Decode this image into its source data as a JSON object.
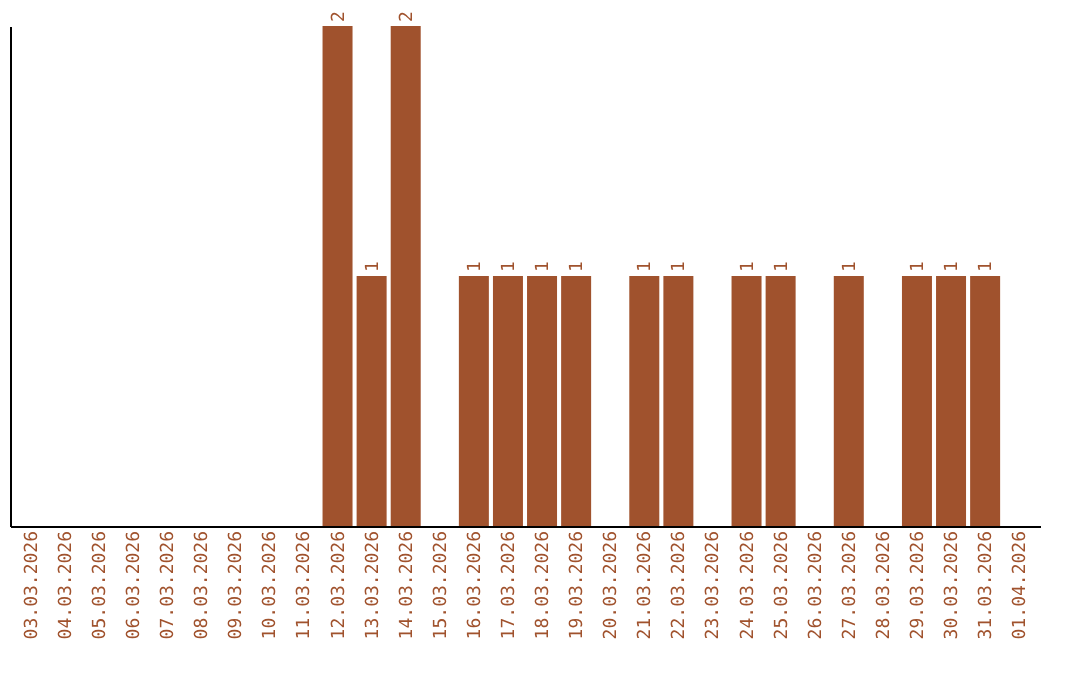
{
  "chart_data": {
    "type": "bar",
    "categories": [
      "03.03.2026",
      "04.03.2026",
      "05.03.2026",
      "06.03.2026",
      "07.03.2026",
      "08.03.2026",
      "09.03.2026",
      "10.03.2026",
      "11.03.2026",
      "12.03.2026",
      "13.03.2026",
      "14.03.2026",
      "15.03.2026",
      "16.03.2026",
      "17.03.2026",
      "18.03.2026",
      "19.03.2026",
      "20.03.2026",
      "21.03.2026",
      "22.03.2026",
      "23.03.2026",
      "24.03.2026",
      "25.03.2026",
      "26.03.2026",
      "27.03.2026",
      "28.03.2026",
      "29.03.2026",
      "30.03.2026",
      "31.03.2026",
      "01.04.2026"
    ],
    "values": [
      0,
      0,
      0,
      0,
      0,
      0,
      0,
      0,
      0,
      2,
      1,
      2,
      0,
      1,
      1,
      1,
      1,
      0,
      1,
      1,
      0,
      1,
      1,
      0,
      1,
      0,
      1,
      1,
      1,
      0
    ],
    "value_labels": [
      null,
      null,
      null,
      null,
      null,
      null,
      null,
      null,
      null,
      "2",
      "1",
      "2",
      null,
      "1",
      "1",
      "1",
      "1",
      null,
      "1",
      "1",
      null,
      "1",
      "1",
      null,
      "1",
      null,
      "1",
      "1",
      "1",
      null
    ],
    "color": "#a0522d",
    "grid": false,
    "tick_labels": "x"
  }
}
